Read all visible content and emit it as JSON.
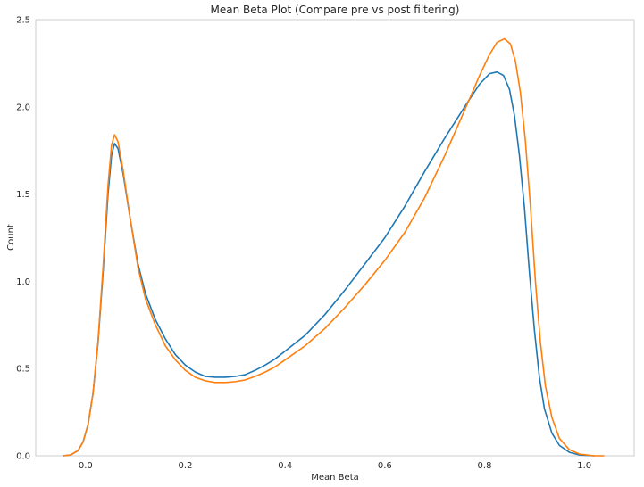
{
  "chart_data": {
    "type": "line",
    "title": "Mean Beta Plot (Compare pre vs post filtering)",
    "xlabel": "Mean Beta",
    "ylabel": "Count",
    "xlim": [
      -0.1,
      1.1
    ],
    "ylim": [
      0,
      2.5
    ],
    "x_ticks": [
      "0.0",
      "0.2",
      "0.4",
      "0.6",
      "0.8",
      "1.0"
    ],
    "x_tick_values": [
      0.0,
      0.2,
      0.4,
      0.6,
      0.8,
      1.0
    ],
    "y_ticks": [
      "0.0",
      "0.5",
      "1.0",
      "1.5",
      "2.0",
      "2.5"
    ],
    "y_tick_values": [
      0.0,
      0.5,
      1.0,
      1.5,
      2.0,
      2.5
    ],
    "grid": false,
    "series": [
      {
        "color": "#1f77b4",
        "points": [
          [
            -0.045,
            0.0
          ],
          [
            -0.03,
            0.005
          ],
          [
            -0.015,
            0.03
          ],
          [
            -0.005,
            0.08
          ],
          [
            0.005,
            0.18
          ],
          [
            0.015,
            0.36
          ],
          [
            0.025,
            0.65
          ],
          [
            0.035,
            1.05
          ],
          [
            0.045,
            1.5
          ],
          [
            0.052,
            1.72
          ],
          [
            0.058,
            1.79
          ],
          [
            0.065,
            1.76
          ],
          [
            0.075,
            1.62
          ],
          [
            0.09,
            1.35
          ],
          [
            0.105,
            1.1
          ],
          [
            0.12,
            0.93
          ],
          [
            0.14,
            0.78
          ],
          [
            0.16,
            0.67
          ],
          [
            0.18,
            0.58
          ],
          [
            0.2,
            0.52
          ],
          [
            0.22,
            0.48
          ],
          [
            0.24,
            0.455
          ],
          [
            0.26,
            0.45
          ],
          [
            0.28,
            0.45
          ],
          [
            0.3,
            0.455
          ],
          [
            0.32,
            0.465
          ],
          [
            0.34,
            0.49
          ],
          [
            0.36,
            0.52
          ],
          [
            0.38,
            0.555
          ],
          [
            0.4,
            0.6
          ],
          [
            0.44,
            0.69
          ],
          [
            0.48,
            0.81
          ],
          [
            0.52,
            0.95
          ],
          [
            0.56,
            1.1
          ],
          [
            0.6,
            1.25
          ],
          [
            0.64,
            1.43
          ],
          [
            0.68,
            1.63
          ],
          [
            0.72,
            1.82
          ],
          [
            0.76,
            2.0
          ],
          [
            0.79,
            2.13
          ],
          [
            0.81,
            2.19
          ],
          [
            0.825,
            2.2
          ],
          [
            0.838,
            2.18
          ],
          [
            0.85,
            2.1
          ],
          [
            0.86,
            1.95
          ],
          [
            0.87,
            1.72
          ],
          [
            0.88,
            1.42
          ],
          [
            0.89,
            1.05
          ],
          [
            0.9,
            0.72
          ],
          [
            0.91,
            0.45
          ],
          [
            0.92,
            0.27
          ],
          [
            0.935,
            0.13
          ],
          [
            0.95,
            0.06
          ],
          [
            0.97,
            0.02
          ],
          [
            0.99,
            0.005
          ],
          [
            1.02,
            0.0
          ]
        ]
      },
      {
        "color": "#ff7f0e",
        "points": [
          [
            -0.045,
            0.0
          ],
          [
            -0.03,
            0.005
          ],
          [
            -0.015,
            0.03
          ],
          [
            -0.005,
            0.08
          ],
          [
            0.005,
            0.18
          ],
          [
            0.015,
            0.36
          ],
          [
            0.025,
            0.66
          ],
          [
            0.035,
            1.08
          ],
          [
            0.045,
            1.55
          ],
          [
            0.052,
            1.78
          ],
          [
            0.058,
            1.84
          ],
          [
            0.065,
            1.8
          ],
          [
            0.075,
            1.64
          ],
          [
            0.09,
            1.35
          ],
          [
            0.105,
            1.08
          ],
          [
            0.12,
            0.9
          ],
          [
            0.14,
            0.75
          ],
          [
            0.16,
            0.63
          ],
          [
            0.18,
            0.55
          ],
          [
            0.2,
            0.49
          ],
          [
            0.22,
            0.45
          ],
          [
            0.24,
            0.43
          ],
          [
            0.26,
            0.42
          ],
          [
            0.28,
            0.42
          ],
          [
            0.3,
            0.425
          ],
          [
            0.32,
            0.435
          ],
          [
            0.34,
            0.455
          ],
          [
            0.36,
            0.48
          ],
          [
            0.38,
            0.51
          ],
          [
            0.4,
            0.55
          ],
          [
            0.44,
            0.63
          ],
          [
            0.48,
            0.73
          ],
          [
            0.52,
            0.85
          ],
          [
            0.56,
            0.98
          ],
          [
            0.6,
            1.12
          ],
          [
            0.64,
            1.28
          ],
          [
            0.68,
            1.48
          ],
          [
            0.72,
            1.72
          ],
          [
            0.76,
            1.98
          ],
          [
            0.79,
            2.18
          ],
          [
            0.81,
            2.3
          ],
          [
            0.825,
            2.37
          ],
          [
            0.84,
            2.39
          ],
          [
            0.852,
            2.36
          ],
          [
            0.862,
            2.26
          ],
          [
            0.872,
            2.08
          ],
          [
            0.882,
            1.8
          ],
          [
            0.892,
            1.43
          ],
          [
            0.902,
            1.0
          ],
          [
            0.912,
            0.65
          ],
          [
            0.922,
            0.4
          ],
          [
            0.935,
            0.22
          ],
          [
            0.95,
            0.1
          ],
          [
            0.97,
            0.035
          ],
          [
            0.99,
            0.01
          ],
          [
            1.02,
            0.0
          ],
          [
            1.04,
            0.0
          ]
        ]
      }
    ]
  }
}
